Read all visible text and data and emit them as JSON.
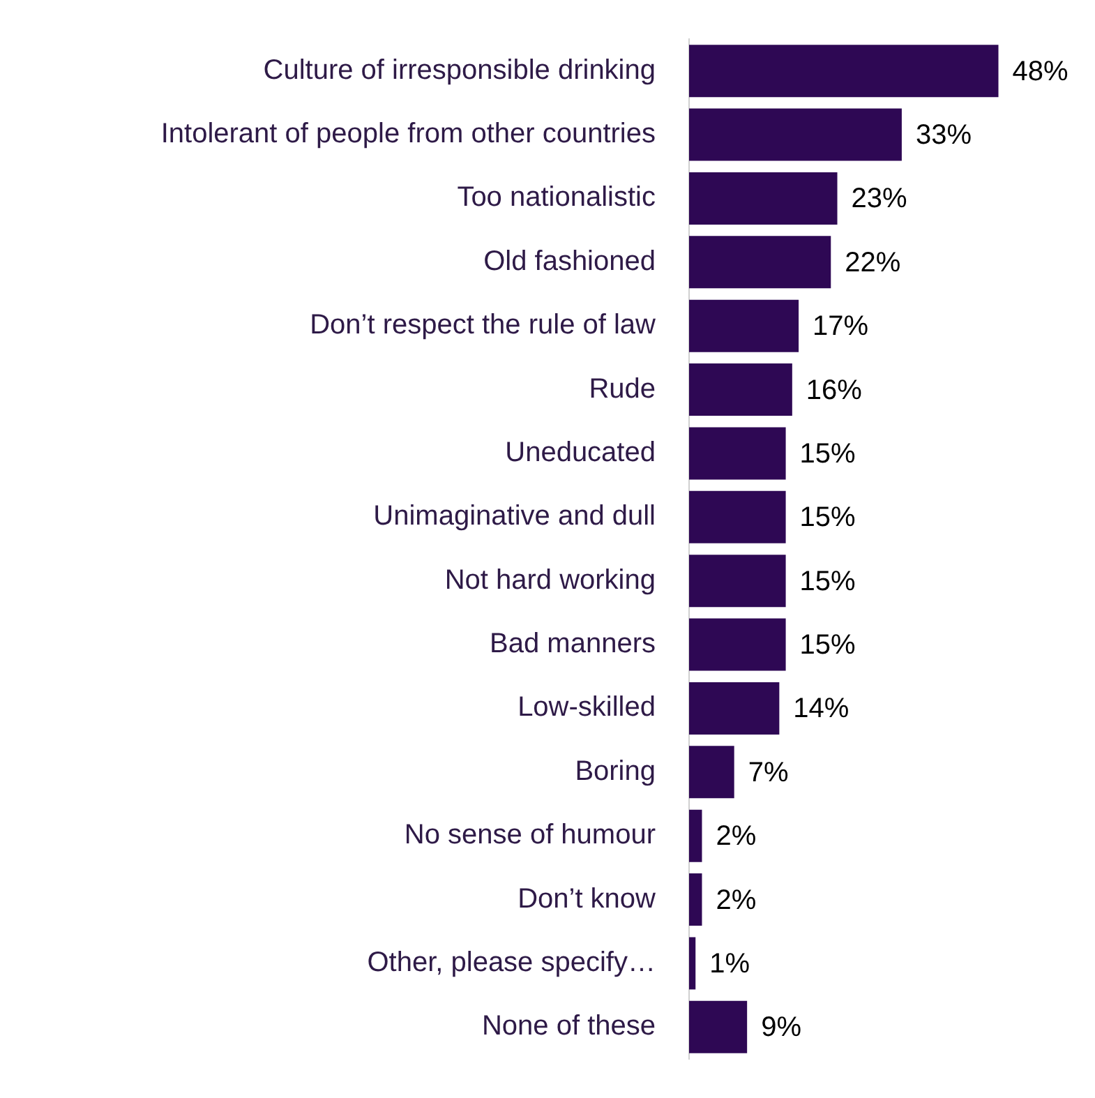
{
  "chart_data": {
    "type": "bar",
    "orientation": "horizontal",
    "categories": [
      "Culture of irresponsible drinking",
      "Intolerant of people from other countries",
      "Too nationalistic",
      "Old fashioned",
      "Don’t respect the rule of law",
      "Rude",
      "Uneducated",
      "Unimaginative and dull",
      "Not hard working",
      "Bad manners",
      "Low-skilled",
      "Boring",
      "No sense of humour",
      "Don’t know",
      "Other, please specify…",
      "None of these"
    ],
    "values": [
      48,
      33,
      23,
      22,
      17,
      16,
      15,
      15,
      15,
      15,
      14,
      7,
      2,
      2,
      1,
      9
    ],
    "value_labels": [
      "48%",
      "33%",
      "23%",
      "22%",
      "17%",
      "16%",
      "15%",
      "15%",
      "15%",
      "15%",
      "14%",
      "7%",
      "2%",
      "2%",
      "1%",
      "9%"
    ],
    "color": "#2e0854",
    "grid": false,
    "legend": false,
    "tick_labels": "y"
  }
}
